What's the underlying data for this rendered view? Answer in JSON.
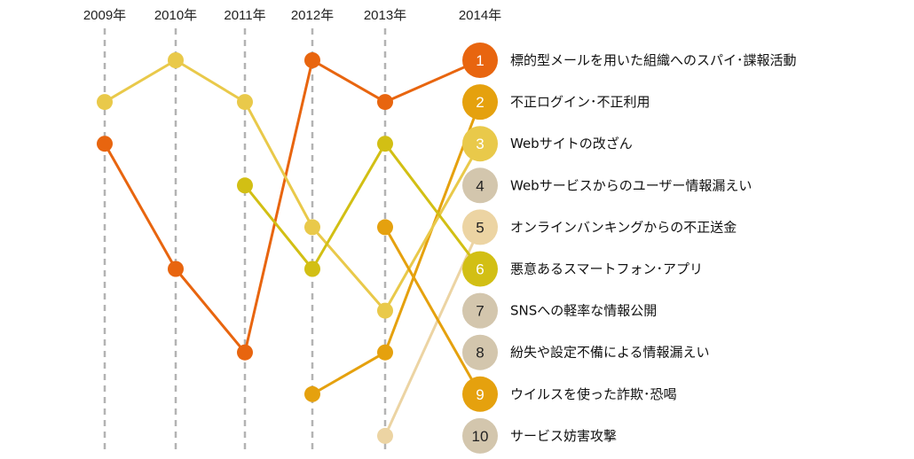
{
  "chart_data": {
    "type": "line",
    "title": "",
    "x": [
      "2009年",
      "2010年",
      "2011年",
      "2012年",
      "2013年",
      "2014年"
    ],
    "ylabel": "",
    "y_reversed": true,
    "ylim": [
      1,
      10
    ],
    "grid": "vertical dashed lines at each year",
    "series": [
      {
        "name": "標的型メールを用いた組織へのスパイ･諜報活動",
        "rank_2014": 1,
        "color": "#e8650f",
        "values": [
          3,
          6,
          8,
          1,
          2,
          1
        ]
      },
      {
        "name": "不正ログイン･不正利用",
        "rank_2014": 2,
        "color": "#e5a10e",
        "values": [
          null,
          null,
          null,
          9,
          8,
          2
        ]
      },
      {
        "name": "Webサイトの改ざん",
        "rank_2014": 3,
        "color": "#e9c94a",
        "values": [
          2,
          1,
          2,
          5,
          7,
          3
        ]
      },
      {
        "name": "Webサービスからのユーザー情報漏えい",
        "rank_2014": 4,
        "color": "#d3c6ad",
        "values": [
          null,
          null,
          null,
          null,
          null,
          4
        ]
      },
      {
        "name": "オンラインバンキングからの不正送金",
        "rank_2014": 5,
        "color": "#ecd4a3",
        "values": [
          null,
          null,
          null,
          null,
          10,
          5
        ]
      },
      {
        "name": "悪意あるスマートフォン･アプリ",
        "rank_2014": 6,
        "color": "#d2bf14",
        "values": [
          null,
          null,
          4,
          6,
          3,
          6
        ]
      },
      {
        "name": "SNSへの軽率な情報公開",
        "rank_2014": 7,
        "color": "#d3c6ad",
        "values": [
          null,
          null,
          null,
          null,
          null,
          7
        ]
      },
      {
        "name": "紛失や設定不備による情報漏えい",
        "rank_2014": 8,
        "color": "#d3c6ad",
        "values": [
          null,
          null,
          null,
          null,
          null,
          8
        ]
      },
      {
        "name": "ウイルスを使った詐欺･恐喝",
        "rank_2014": 9,
        "color": "#e5a10e",
        "values": [
          null,
          null,
          null,
          null,
          5,
          9
        ]
      },
      {
        "name": "サービス妨害攻撃",
        "rank_2014": 10,
        "color": "#d3c6ad",
        "values": [
          null,
          null,
          null,
          null,
          null,
          10
        ]
      }
    ]
  }
}
